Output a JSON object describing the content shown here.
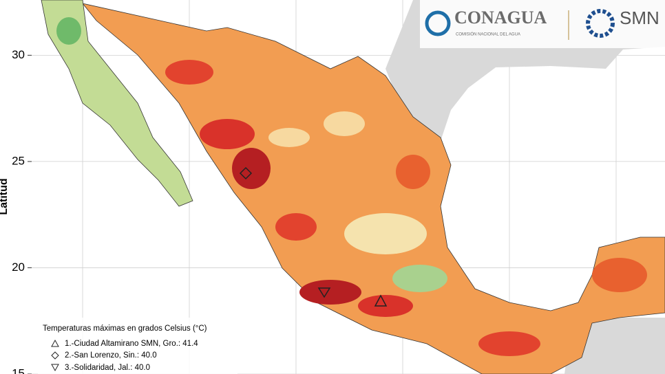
{
  "map": {
    "ylabel": "Latitud",
    "ylim": [
      15,
      32.6
    ],
    "yticks": [
      30,
      25,
      20,
      15
    ]
  },
  "logo": {
    "name": "CONAGUA",
    "subtitle": "COMISIÓN NACIONAL DEL AGUA",
    "smn": "SMN"
  },
  "legend": {
    "title": "Temperaturas máximas en grados Celsius (°C)",
    "items": [
      "1.-Ciudad Altamirano SMN, Gro.: 41.4",
      "2.-San Lorenzo, Sin.: 40.0",
      "3.-Solidaridad, Jal.: 40.0"
    ]
  }
}
